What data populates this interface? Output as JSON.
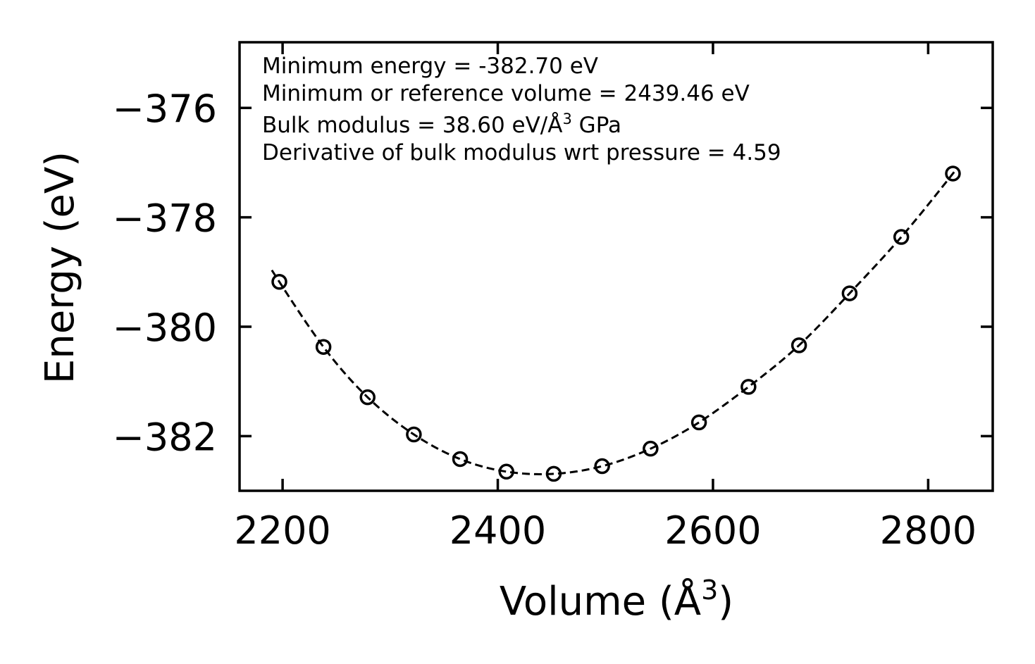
{
  "chart_data": {
    "type": "scatter",
    "title": "",
    "xlabel": "Volume (Å",
    "xlabel_sup": "3",
    "xlabel_end": ")",
    "ylabel": "Energy (eV)",
    "xlim": [
      2160,
      2860
    ],
    "ylim": [
      -383.0,
      -374.8
    ],
    "xticks": [
      2200,
      2400,
      2600,
      2800
    ],
    "yticks": [
      -376,
      -378,
      -380,
      -382
    ],
    "xtick_labels": [
      "2200",
      "2400",
      "2600",
      "2800"
    ],
    "ytick_labels": [
      "−376",
      "−378",
      "−380",
      "−382"
    ],
    "series": [
      {
        "name": "data",
        "marker": "open-circle",
        "x": [
          2197,
          2238,
          2279,
          2322,
          2365,
          2408,
          2452,
          2497,
          2542,
          2587,
          2633,
          2680,
          2727,
          2775,
          2823
        ],
        "y": [
          -379.18,
          -380.37,
          -381.29,
          -381.97,
          -382.42,
          -382.65,
          -382.69,
          -382.55,
          -382.23,
          -381.75,
          -381.1,
          -380.34,
          -379.39,
          -378.36,
          -377.2
        ]
      },
      {
        "name": "fit",
        "style": "dashed",
        "e0": -382.7,
        "v0": 2439.46,
        "x_range": [
          2190,
          2825
        ]
      }
    ],
    "annotations": [
      "Minimum energy = -382.70 eV",
      "Minimum or reference volume = 2439.46 eV",
      "Bulk modulus = 38.60 eV/Å",
      "Derivative of bulk modulus wrt pressure = 4.59"
    ],
    "annotation_sup": "3",
    "annotation_unit_end": " GPa",
    "grid": false,
    "legend": "none",
    "colors": {
      "line": "#000000",
      "marker": "#000000",
      "background": "#ffffff"
    }
  }
}
